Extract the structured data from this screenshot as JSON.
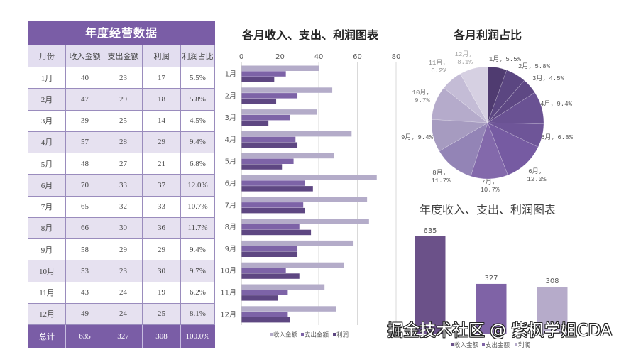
{
  "table": {
    "title": "年度经营数据",
    "headers": [
      "月份",
      "收入金额",
      "支出金额",
      "利润",
      "利润占比"
    ],
    "rows": [
      [
        "1月",
        "40",
        "23",
        "17",
        "5.5%"
      ],
      [
        "2月",
        "47",
        "29",
        "18",
        "5.8%"
      ],
      [
        "3月",
        "39",
        "25",
        "14",
        "4.5%"
      ],
      [
        "4月",
        "57",
        "28",
        "29",
        "9.4%"
      ],
      [
        "5月",
        "48",
        "27",
        "21",
        "6.8%"
      ],
      [
        "6月",
        "70",
        "33",
        "37",
        "12.0%"
      ],
      [
        "7月",
        "65",
        "32",
        "33",
        "10.7%"
      ],
      [
        "8月",
        "66",
        "30",
        "36",
        "11.7%"
      ],
      [
        "9月",
        "58",
        "29",
        "29",
        "9.4%"
      ],
      [
        "10月",
        "53",
        "23",
        "30",
        "9.7%"
      ],
      [
        "11月",
        "43",
        "24",
        "19",
        "6.2%"
      ],
      [
        "12月",
        "49",
        "24",
        "25",
        "8.1%"
      ]
    ],
    "total": [
      "总计",
      "635",
      "327",
      "308",
      "100.0%"
    ]
  },
  "chart_data": [
    {
      "type": "bar",
      "orientation": "horizontal",
      "title": "各月收入、支出、利润图表",
      "categories": [
        "1月",
        "2月",
        "3月",
        "4月",
        "5月",
        "6月",
        "7月",
        "8月",
        "9月",
        "10月",
        "11月",
        "12月"
      ],
      "series": [
        {
          "name": "收入金额",
          "values": [
            40,
            47,
            39,
            57,
            48,
            70,
            65,
            66,
            58,
            53,
            43,
            49
          ],
          "color": "#b4acc9"
        },
        {
          "name": "支出金额",
          "values": [
            23,
            29,
            25,
            28,
            27,
            33,
            32,
            30,
            29,
            23,
            24,
            24
          ],
          "color": "#7d63a7"
        },
        {
          "name": "利润",
          "values": [
            17,
            18,
            14,
            29,
            21,
            37,
            33,
            36,
            29,
            30,
            19,
            25
          ],
          "color": "#5e4782"
        }
      ],
      "xlim": [
        0,
        80
      ],
      "xticks": [
        0,
        20,
        40,
        60,
        80
      ],
      "grid": true,
      "legend": "bottom"
    },
    {
      "type": "pie",
      "title": "各月利润占比",
      "categories": [
        "1月",
        "2月",
        "3月",
        "4月",
        "5月",
        "6月",
        "7月",
        "8月",
        "9月",
        "10月",
        "11月",
        "12月"
      ],
      "values": [
        17,
        18,
        14,
        29,
        21,
        37,
        33,
        36,
        29,
        30,
        19,
        25
      ],
      "labels": [
        "1月，5.5%",
        "2月，5.8%",
        "3月，4.5%",
        "4月，9.4%",
        "5月，6.8%",
        "6月，12.0%",
        "7月，10.7%",
        "8月，11.7%",
        "9月，9.4%",
        "10月，9.7%",
        "11月，6.2%",
        "12月，8.1%"
      ],
      "colors": [
        "#4f3b70",
        "#5b4681",
        "#5e4884",
        "#6a5293",
        "#6e5598",
        "#765ba2",
        "#8369ab",
        "#9384b6",
        "#a69bc0",
        "#b5abcb",
        "#c4bcd6",
        "#d6d0e2"
      ]
    },
    {
      "type": "bar",
      "title": "年度收入、支出、利润图表",
      "categories": [
        "收入金额",
        "支出金额",
        "利润"
      ],
      "values": [
        635,
        327,
        308
      ],
      "colors": [
        "#6b5189",
        "#7f63a6",
        "#b6abca"
      ],
      "legend": "bottom"
    }
  ],
  "watermark": "掘金技术社区 @ 紫枫学姐CDA"
}
